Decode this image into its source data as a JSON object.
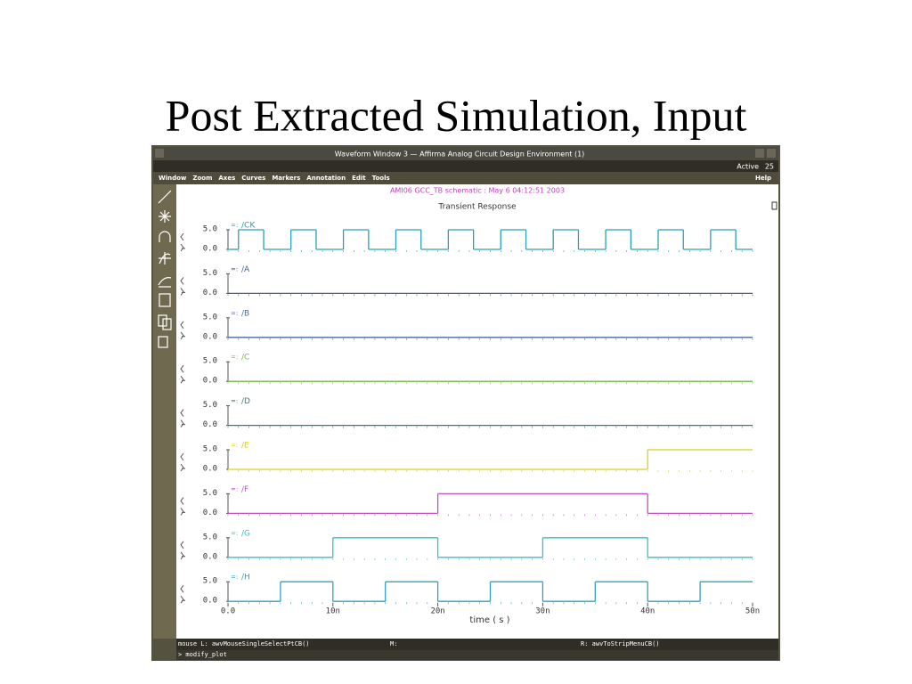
{
  "slide": {
    "title": "Post Extracted Simulation, Input"
  },
  "window": {
    "title": "Waveform Window 3 — Affirma Analog Circuit Design Environment (1)",
    "status": [
      "Active",
      "25"
    ],
    "menu": [
      "Window",
      "Zoom",
      "Axes",
      "Curves",
      "Markers",
      "Annotation",
      "Edit",
      "Tools"
    ],
    "help": "Help",
    "plot": {
      "header": "AMI06 GCC_TB schematic : May  6 04:12:51 2003",
      "subtitle": "Transient Response",
      "xlabel": "time ( s )",
      "xlim": [
        0,
        50
      ],
      "xticks": [
        {
          "value": 0,
          "label": "0.0"
        },
        {
          "value": 10,
          "label": "10n"
        },
        {
          "value": 20,
          "label": "20n"
        },
        {
          "value": 30,
          "label": "30n"
        },
        {
          "value": 40,
          "label": "40n"
        },
        {
          "value": 50,
          "label": "50n"
        }
      ],
      "ylim": [
        0,
        5
      ],
      "yticks": [
        {
          "value": 5,
          "label": "5.0"
        },
        {
          "value": 0,
          "label": "0.0"
        }
      ],
      "signals": [
        {
          "name": "/CK",
          "color": "#2aa0b8",
          "x": [
            0,
            1,
            3.4,
            6,
            8.4,
            11,
            13.4,
            16,
            18.4,
            21,
            23.4,
            26,
            28.4,
            31,
            33.4,
            36,
            38.4,
            41,
            43.4,
            46,
            48.4
          ],
          "values": [
            0,
            5,
            0,
            5,
            0,
            5,
            0,
            5,
            0,
            5,
            0,
            5,
            0,
            5,
            0,
            5,
            0,
            5,
            0,
            5,
            0
          ]
        },
        {
          "name": "/A",
          "color": "#4a5a8a",
          "x": [
            0
          ],
          "values": [
            0
          ]
        },
        {
          "name": "/B",
          "color": "#4a6aa0",
          "x": [
            0
          ],
          "values": [
            0
          ]
        },
        {
          "name": "/C",
          "color": "#7ab84a",
          "x": [
            0
          ],
          "values": [
            0
          ]
        },
        {
          "name": "/D",
          "color": "#3a7a7a",
          "x": [
            0
          ],
          "values": [
            0
          ]
        },
        {
          "name": "/E",
          "color": "#d8d020",
          "x": [
            0,
            40
          ],
          "values": [
            0,
            5
          ]
        },
        {
          "name": "/F",
          "color": "#c050c0",
          "x": [
            0,
            20,
            40
          ],
          "values": [
            0,
            5,
            0
          ]
        },
        {
          "name": "/G",
          "color": "#30c0d0",
          "x": [
            0,
            10,
            20,
            30,
            40
          ],
          "values": [
            0,
            5,
            0,
            5,
            0
          ]
        },
        {
          "name": "/H",
          "color": "#30a0c0",
          "x": [
            0,
            5,
            10,
            15,
            20,
            25,
            30,
            35,
            40,
            45
          ],
          "values": [
            0,
            5,
            0,
            5,
            0,
            5,
            0,
            5,
            0,
            5
          ]
        }
      ]
    },
    "footer": {
      "left": "mouse L: awvMouseSingleSelectPtCB()",
      "middle": "M:",
      "right": "R: awvToStripMenuCB()",
      "prompt": "> modify_plot"
    }
  }
}
